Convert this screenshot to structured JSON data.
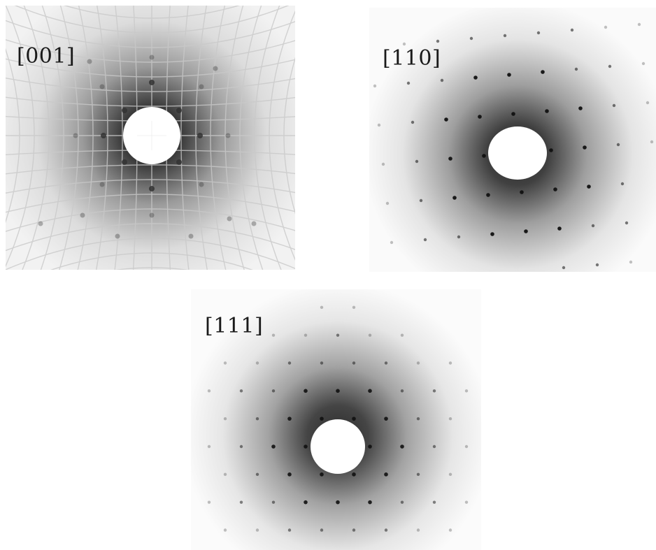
{
  "patterns": [
    {
      "id": "001",
      "label": "[001]",
      "has_grid": true,
      "center": [
        0.507,
        0.493
      ],
      "beam_stop_radius": 0.1,
      "halo_color": "#242424"
    },
    {
      "id": "110",
      "label": "[110]",
      "has_grid": false,
      "center": [
        0.512,
        0.551
      ],
      "beam_stop_radius": 0.1,
      "halo_color": "#2e2e2e"
    },
    {
      "id": "111",
      "label": "[111]",
      "has_grid": false,
      "center": [
        0.508,
        0.607
      ],
      "beam_stop_radius": 0.093,
      "halo_color": "#2e2e2e"
    }
  ]
}
